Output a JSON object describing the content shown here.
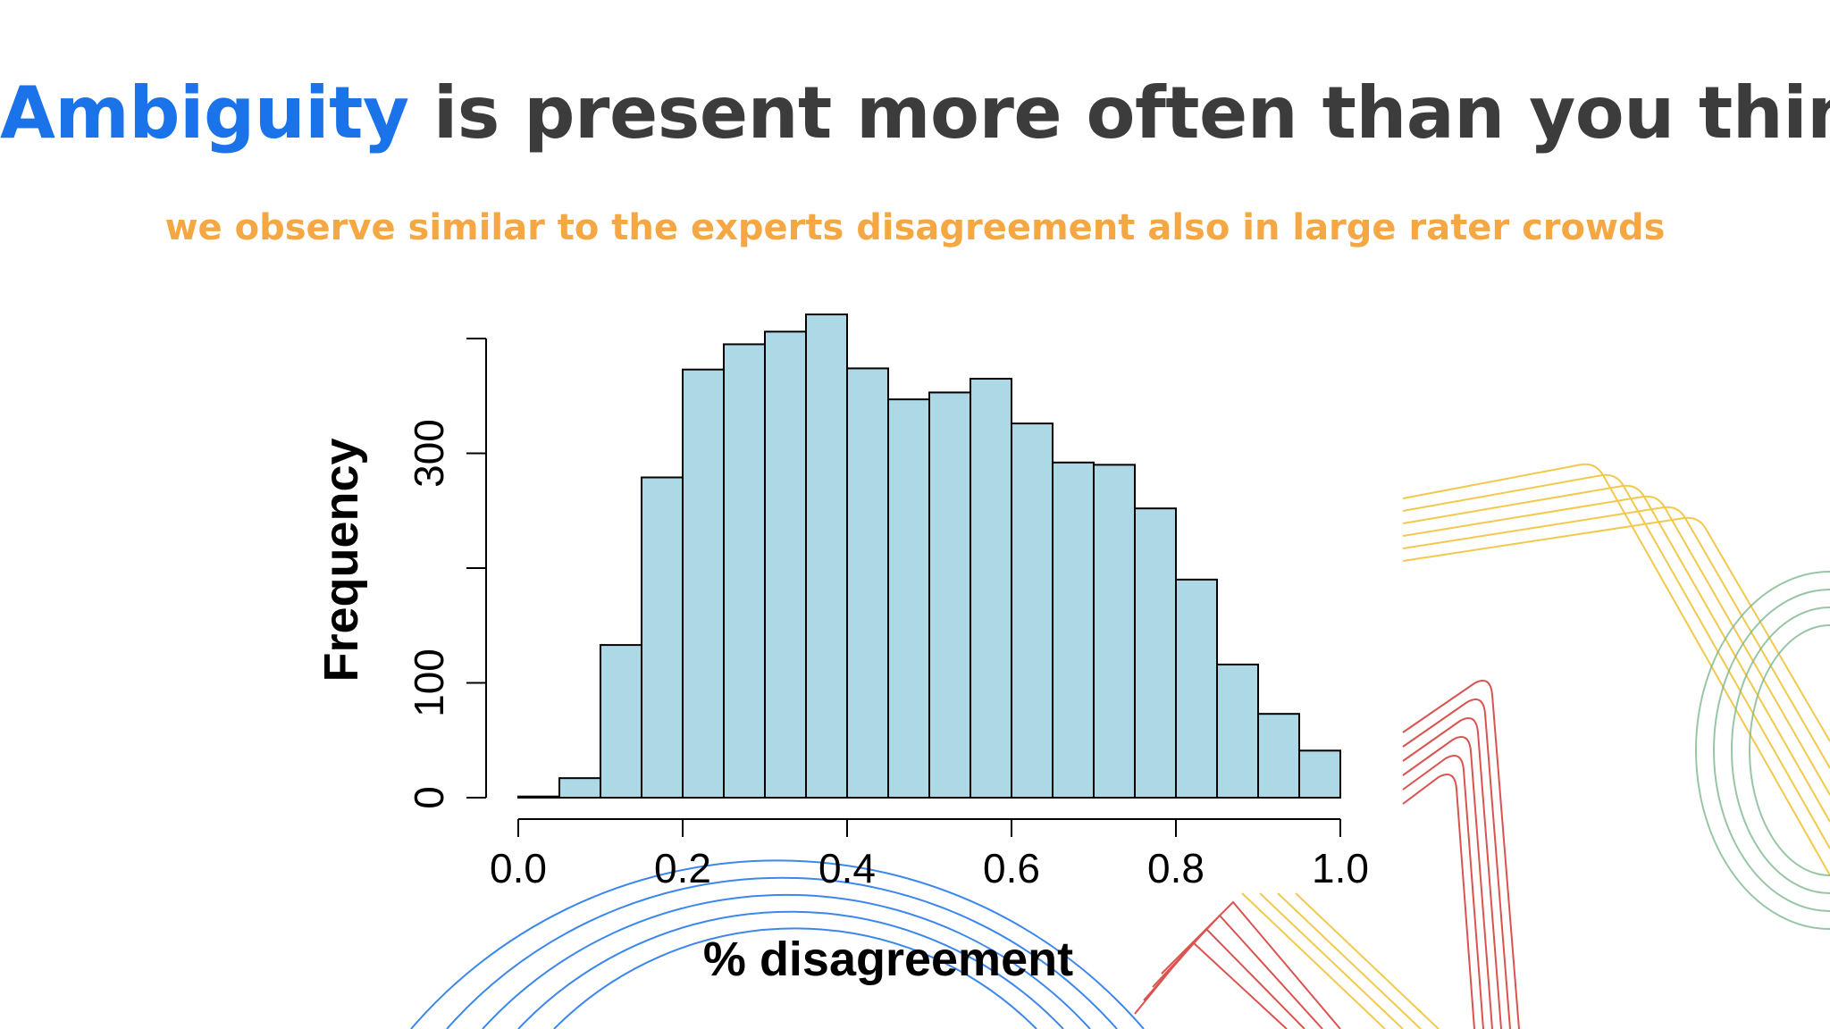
{
  "slide": {
    "title_accent": "Ambiguity",
    "title_rest": " is present more often than you think",
    "subtitle": "we observe similar to the experts disagreement also in large rater crowds"
  },
  "colors": {
    "accent": "#1a73e8",
    "title": "#3c3c3c",
    "subtitle": "#f4a742",
    "bar_fill": "#add8e6",
    "bar_stroke": "#000000"
  },
  "chart_data": {
    "type": "bar",
    "subtype": "histogram",
    "xlabel": "% disagreement",
    "ylabel": "Frequency",
    "xlim": [
      0.0,
      1.0
    ],
    "ylim": [
      0,
      400
    ],
    "xticks": [
      0.0,
      0.2,
      0.4,
      0.6,
      0.8,
      1.0
    ],
    "xtick_labels": [
      "0.0",
      "0.2",
      "0.4",
      "0.6",
      "0.8",
      "1.0"
    ],
    "yticks": [
      0,
      100,
      200,
      300,
      400
    ],
    "ytick_labels": [
      "0",
      "100",
      "",
      "300",
      ""
    ],
    "bin_edges": [
      0.0,
      0.05,
      0.1,
      0.15,
      0.2,
      0.25,
      0.3,
      0.35,
      0.4,
      0.45,
      0.5,
      0.55,
      0.6,
      0.65,
      0.7,
      0.75,
      0.8,
      0.85,
      0.9,
      0.95,
      1.0
    ],
    "values": [
      1,
      17,
      133,
      279,
      373,
      395,
      406,
      421,
      374,
      347,
      353,
      365,
      326,
      292,
      290,
      252,
      190,
      116,
      73,
      41
    ],
    "grid": false,
    "legend": "none"
  }
}
